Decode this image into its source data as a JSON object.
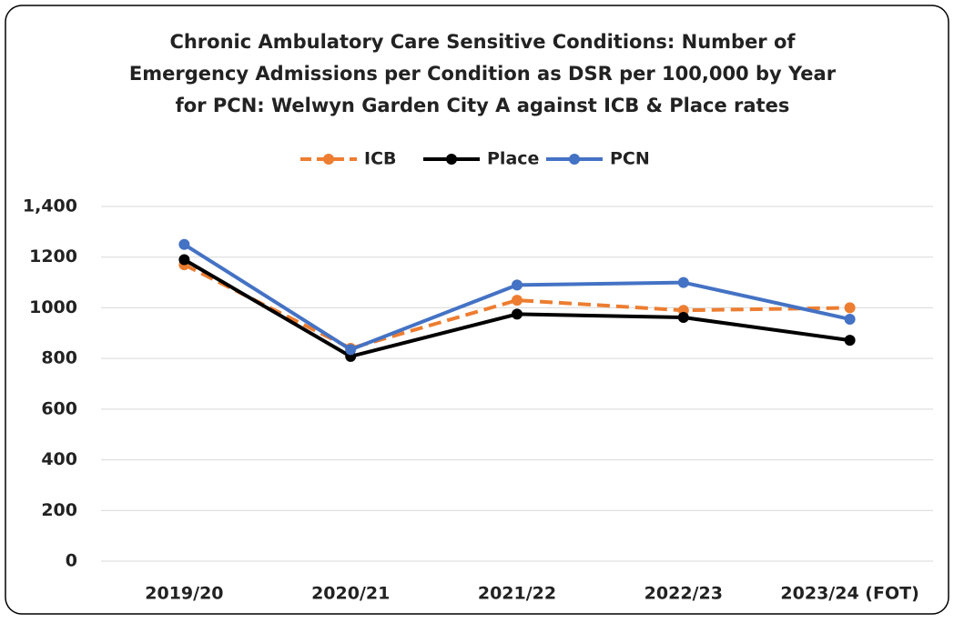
{
  "chart_data": {
    "type": "line",
    "title": [
      "Chronic Ambulatory Care Sensitive Conditions: Number of",
      "Emergency Admissions per Condition as DSR per 100,000 by Year",
      "for PCN: Welwyn Garden City A against ICB & Place rates"
    ],
    "categories": [
      "2019/20",
      "2020/21",
      "2021/22",
      "2022/23",
      "2023/24 (FOT)"
    ],
    "series": [
      {
        "name": "ICB",
        "color": "#ed7d31",
        "dashed": true,
        "values": [
          1170,
          840,
          1030,
          990,
          1000
        ]
      },
      {
        "name": "Place",
        "color": "#000000",
        "dashed": false,
        "values": [
          1190,
          808,
          975,
          962,
          872
        ]
      },
      {
        "name": "PCN",
        "color": "#4472c4",
        "dashed": false,
        "values": [
          1250,
          835,
          1090,
          1100,
          955
        ]
      }
    ],
    "ylim": [
      0,
      1400
    ],
    "yticks": [
      0,
      200,
      400,
      600,
      800,
      1000,
      1200,
      {
        "value": 1400,
        "label": "1,400"
      }
    ],
    "grid": true,
    "legend": "top"
  }
}
